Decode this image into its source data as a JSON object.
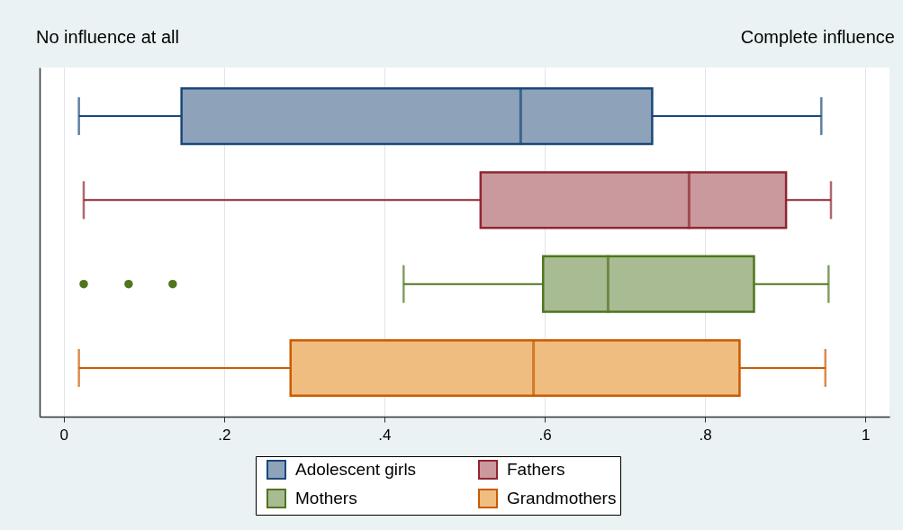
{
  "chart_data": {
    "type": "box",
    "orientation": "horizontal",
    "categories": [
      null
    ],
    "series": [
      {
        "name": "Adolescent girls",
        "color": "#8ea3ba",
        "boxes": [
          {
            "low": 0.019,
            "q1": 0.147,
            "median": 0.57,
            "q3": 0.734,
            "high": 0.945
          }
        ]
      },
      {
        "name": "Fathers",
        "color": "#c9999e",
        "boxes": [
          {
            "low": 0.025,
            "q1": 0.52,
            "median": 0.78,
            "q3": 0.901,
            "high": 0.957
          }
        ]
      },
      {
        "name": "Mothers",
        "color": "#a9bb93",
        "boxes": [
          {
            "low": 0.424,
            "q1": 0.598,
            "median": 0.679,
            "q3": 0.861,
            "high": 0.954,
            "outliers": [
              0.025,
              0.081,
              0.136
            ]
          }
        ]
      },
      {
        "name": "Grandmothers",
        "color": "#f0bd80",
        "boxes": [
          {
            "low": 0.019,
            "q1": 0.283,
            "median": 0.586,
            "q3": 0.843,
            "high": 0.95
          }
        ]
      }
    ],
    "xlim": [
      -0.03,
      1.03
    ],
    "xticks": [
      0,
      {
        "value": 0.2,
        "label": ".2"
      },
      {
        "value": 0.4,
        "label": ".4"
      },
      {
        "value": 0.6,
        "label": ".6"
      },
      {
        "value": 0.8,
        "label": ".8"
      },
      1
    ],
    "annotations": [
      "No influence at all",
      "Complete influence"
    ],
    "grid": "x",
    "legend": "bottom",
    "tick_labels": "x"
  }
}
